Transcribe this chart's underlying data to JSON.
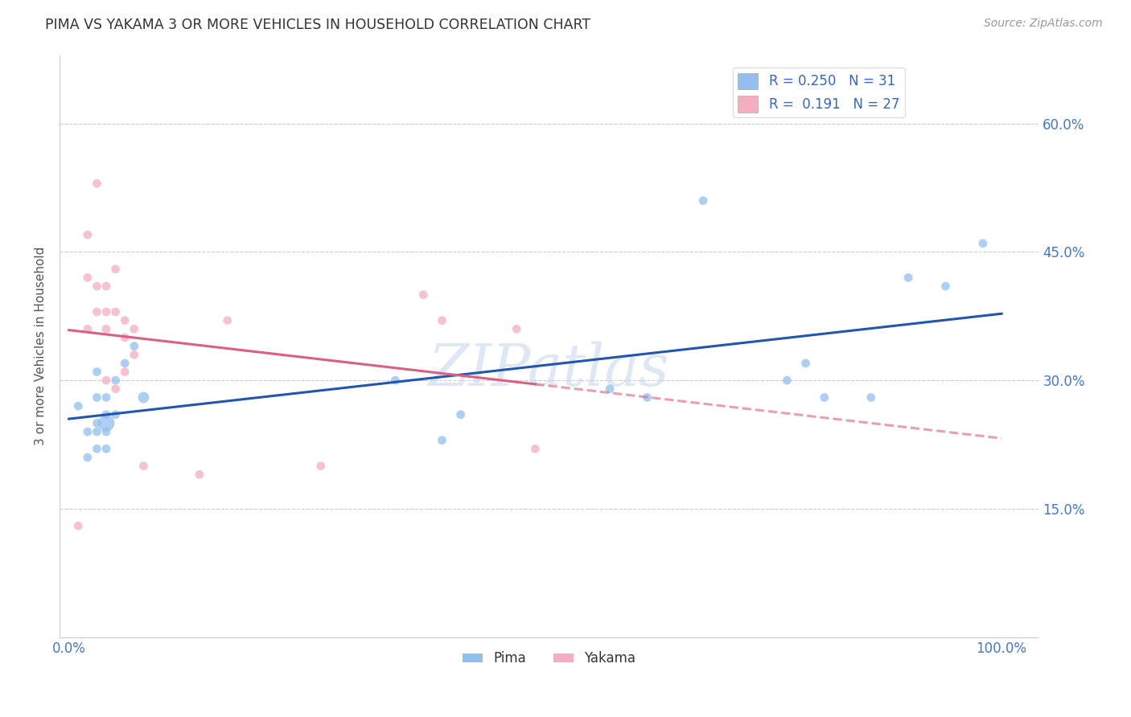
{
  "title": "PIMA VS YAKAMA 3 OR MORE VEHICLES IN HOUSEHOLD CORRELATION CHART",
  "source": "Source: ZipAtlas.com",
  "ylabel": "3 or more Vehicles in Household",
  "xlabel": "",
  "xlim": [
    -0.01,
    1.04
  ],
  "ylim": [
    0.0,
    0.68
  ],
  "ytick_values": [
    0.15,
    0.3,
    0.45,
    0.6
  ],
  "xtick_values": [
    0.0,
    1.0
  ],
  "legend_pima_r": "0.250",
  "legend_pima_n": "31",
  "legend_yakama_r": "0.191",
  "legend_yakama_n": "27",
  "pima_color": "#92bfed",
  "yakama_color": "#f5aec0",
  "pima_line_color": "#2255b0",
  "yakama_line_color": "#d96080",
  "background_color": "#ffffff",
  "grid_color": "#cccccc",
  "watermark": "ZIPatlas",
  "pima_x": [
    0.01,
    0.02,
    0.02,
    0.03,
    0.03,
    0.03,
    0.03,
    0.03,
    0.04,
    0.04,
    0.04,
    0.04,
    0.04,
    0.05,
    0.05,
    0.06,
    0.07,
    0.08,
    0.35,
    0.4,
    0.42,
    0.58,
    0.62,
    0.68,
    0.77,
    0.79,
    0.81,
    0.86,
    0.9,
    0.94,
    0.98
  ],
  "pima_y": [
    0.27,
    0.21,
    0.24,
    0.25,
    0.28,
    0.31,
    0.22,
    0.24,
    0.26,
    0.28,
    0.22,
    0.24,
    0.25,
    0.3,
    0.26,
    0.32,
    0.34,
    0.28,
    0.3,
    0.23,
    0.26,
    0.29,
    0.28,
    0.51,
    0.3,
    0.32,
    0.28,
    0.28,
    0.42,
    0.41,
    0.46
  ],
  "pima_size": [
    60,
    60,
    60,
    60,
    60,
    60,
    60,
    60,
    60,
    60,
    60,
    60,
    220,
    60,
    60,
    60,
    60,
    100,
    60,
    60,
    60,
    60,
    60,
    60,
    60,
    60,
    60,
    60,
    60,
    60,
    60
  ],
  "yakama_x": [
    0.01,
    0.02,
    0.02,
    0.02,
    0.03,
    0.03,
    0.03,
    0.04,
    0.04,
    0.04,
    0.04,
    0.05,
    0.05,
    0.05,
    0.06,
    0.06,
    0.06,
    0.07,
    0.07,
    0.08,
    0.14,
    0.17,
    0.27,
    0.38,
    0.4,
    0.48,
    0.5
  ],
  "yakama_y": [
    0.13,
    0.47,
    0.42,
    0.36,
    0.41,
    0.38,
    0.53,
    0.41,
    0.38,
    0.36,
    0.3,
    0.43,
    0.38,
    0.29,
    0.37,
    0.35,
    0.31,
    0.36,
    0.33,
    0.2,
    0.19,
    0.37,
    0.2,
    0.4,
    0.37,
    0.36,
    0.22
  ],
  "yakama_size": [
    60,
    60,
    60,
    60,
    60,
    60,
    60,
    60,
    60,
    60,
    60,
    60,
    60,
    60,
    60,
    60,
    60,
    60,
    60,
    60,
    60,
    60,
    60,
    60,
    60,
    60,
    60
  ]
}
